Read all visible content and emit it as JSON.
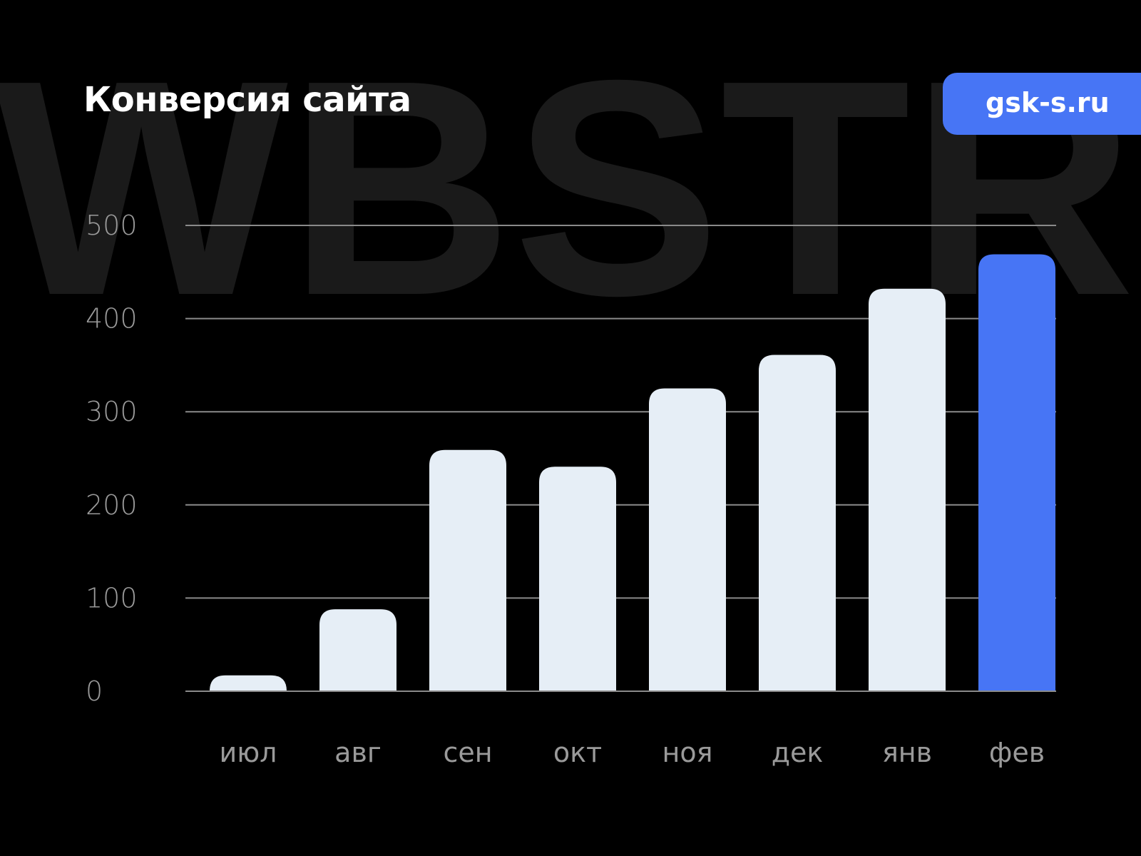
{
  "watermark": "WBSTR",
  "badge": "gsk-s.ru",
  "colors": {
    "bar": "#e6eef6",
    "highlight": "#4775f5",
    "grid": "#8a8a8a",
    "label": "#9a9a9a",
    "watermark": "#1a1a1a"
  },
  "chart_data": {
    "type": "bar",
    "title": "Конверсия сайта",
    "categories": [
      "июл",
      "авг",
      "сен",
      "окт",
      "ноя",
      "дек",
      "янв",
      "фев"
    ],
    "values": [
      17,
      88,
      259,
      241,
      325,
      361,
      432,
      469
    ],
    "highlighted": "фев",
    "ylim": [
      0,
      500
    ],
    "yticks": [
      0,
      100,
      200,
      300,
      400,
      500
    ],
    "grid": true,
    "xlabel": "",
    "ylabel": ""
  }
}
